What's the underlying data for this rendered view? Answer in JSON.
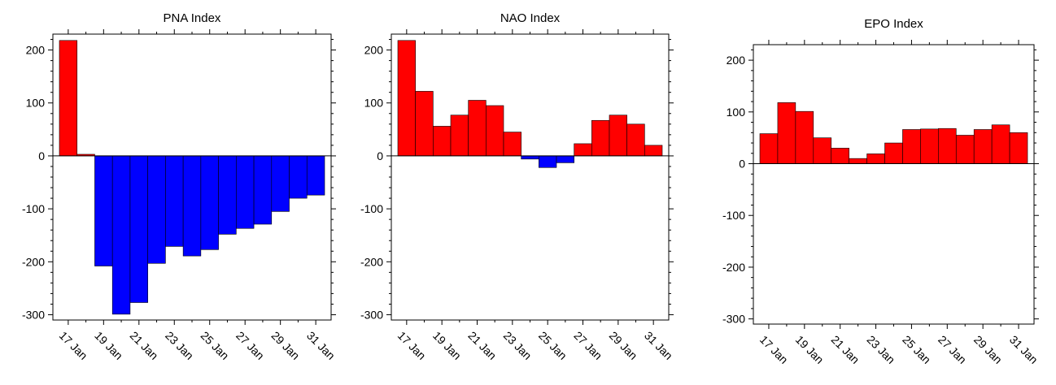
{
  "chart_data": [
    {
      "type": "bar",
      "title": "PNA Index",
      "x": [
        "17 Jan",
        "18 Jan",
        "19 Jan",
        "20 Jan",
        "21 Jan",
        "22 Jan",
        "23 Jan",
        "24 Jan",
        "25 Jan",
        "26 Jan",
        "27 Jan",
        "28 Jan",
        "29 Jan",
        "30 Jan",
        "31 Jan"
      ],
      "values": [
        218,
        3,
        -208,
        -299,
        -277,
        -203,
        -171,
        -189,
        -177,
        -148,
        -137,
        -129,
        -105,
        -80,
        -74
      ],
      "ylim": [
        -310,
        230
      ],
      "yticks": [
        -300,
        -200,
        -100,
        0,
        100,
        200
      ],
      "xtick_labels": [
        "17 Jan",
        "19 Jan",
        "21 Jan",
        "23 Jan",
        "25 Jan",
        "27 Jan",
        "29 Jan",
        "31 Jan"
      ],
      "positive_color": "#ff0000",
      "negative_color": "#0000ff"
    },
    {
      "type": "bar",
      "title": "NAO Index",
      "x": [
        "17 Jan",
        "18 Jan",
        "19 Jan",
        "20 Jan",
        "21 Jan",
        "22 Jan",
        "23 Jan",
        "24 Jan",
        "25 Jan",
        "26 Jan",
        "27 Jan",
        "28 Jan",
        "29 Jan",
        "30 Jan",
        "31 Jan"
      ],
      "values": [
        218,
        122,
        56,
        77,
        105,
        95,
        45,
        -6,
        -22,
        -13,
        23,
        67,
        77,
        60,
        20
      ],
      "ylim": [
        -310,
        230
      ],
      "yticks": [
        -300,
        -200,
        -100,
        0,
        100,
        200
      ],
      "xtick_labels": [
        "17 Jan",
        "19 Jan",
        "21 Jan",
        "23 Jan",
        "25 Jan",
        "27 Jan",
        "29 Jan",
        "31 Jan"
      ],
      "positive_color": "#ff0000",
      "negative_color": "#0000ff"
    },
    {
      "type": "bar",
      "title": "EPO Index",
      "x": [
        "17 Jan",
        "18 Jan",
        "19 Jan",
        "20 Jan",
        "21 Jan",
        "22 Jan",
        "23 Jan",
        "24 Jan",
        "25 Jan",
        "26 Jan",
        "27 Jan",
        "28 Jan",
        "29 Jan",
        "30 Jan",
        "31 Jan"
      ],
      "values": [
        58,
        118,
        101,
        50,
        30,
        10,
        19,
        40,
        66,
        67,
        68,
        55,
        66,
        75,
        60
      ],
      "ylim": [
        -310,
        230
      ],
      "yticks": [
        -300,
        -200,
        -100,
        0,
        100,
        200
      ],
      "xtick_labels": [
        "17 Jan",
        "19 Jan",
        "21 Jan",
        "23 Jan",
        "25 Jan",
        "27 Jan",
        "29 Jan",
        "31 Jan"
      ],
      "positive_color": "#ff0000",
      "negative_color": "#0000ff"
    }
  ]
}
